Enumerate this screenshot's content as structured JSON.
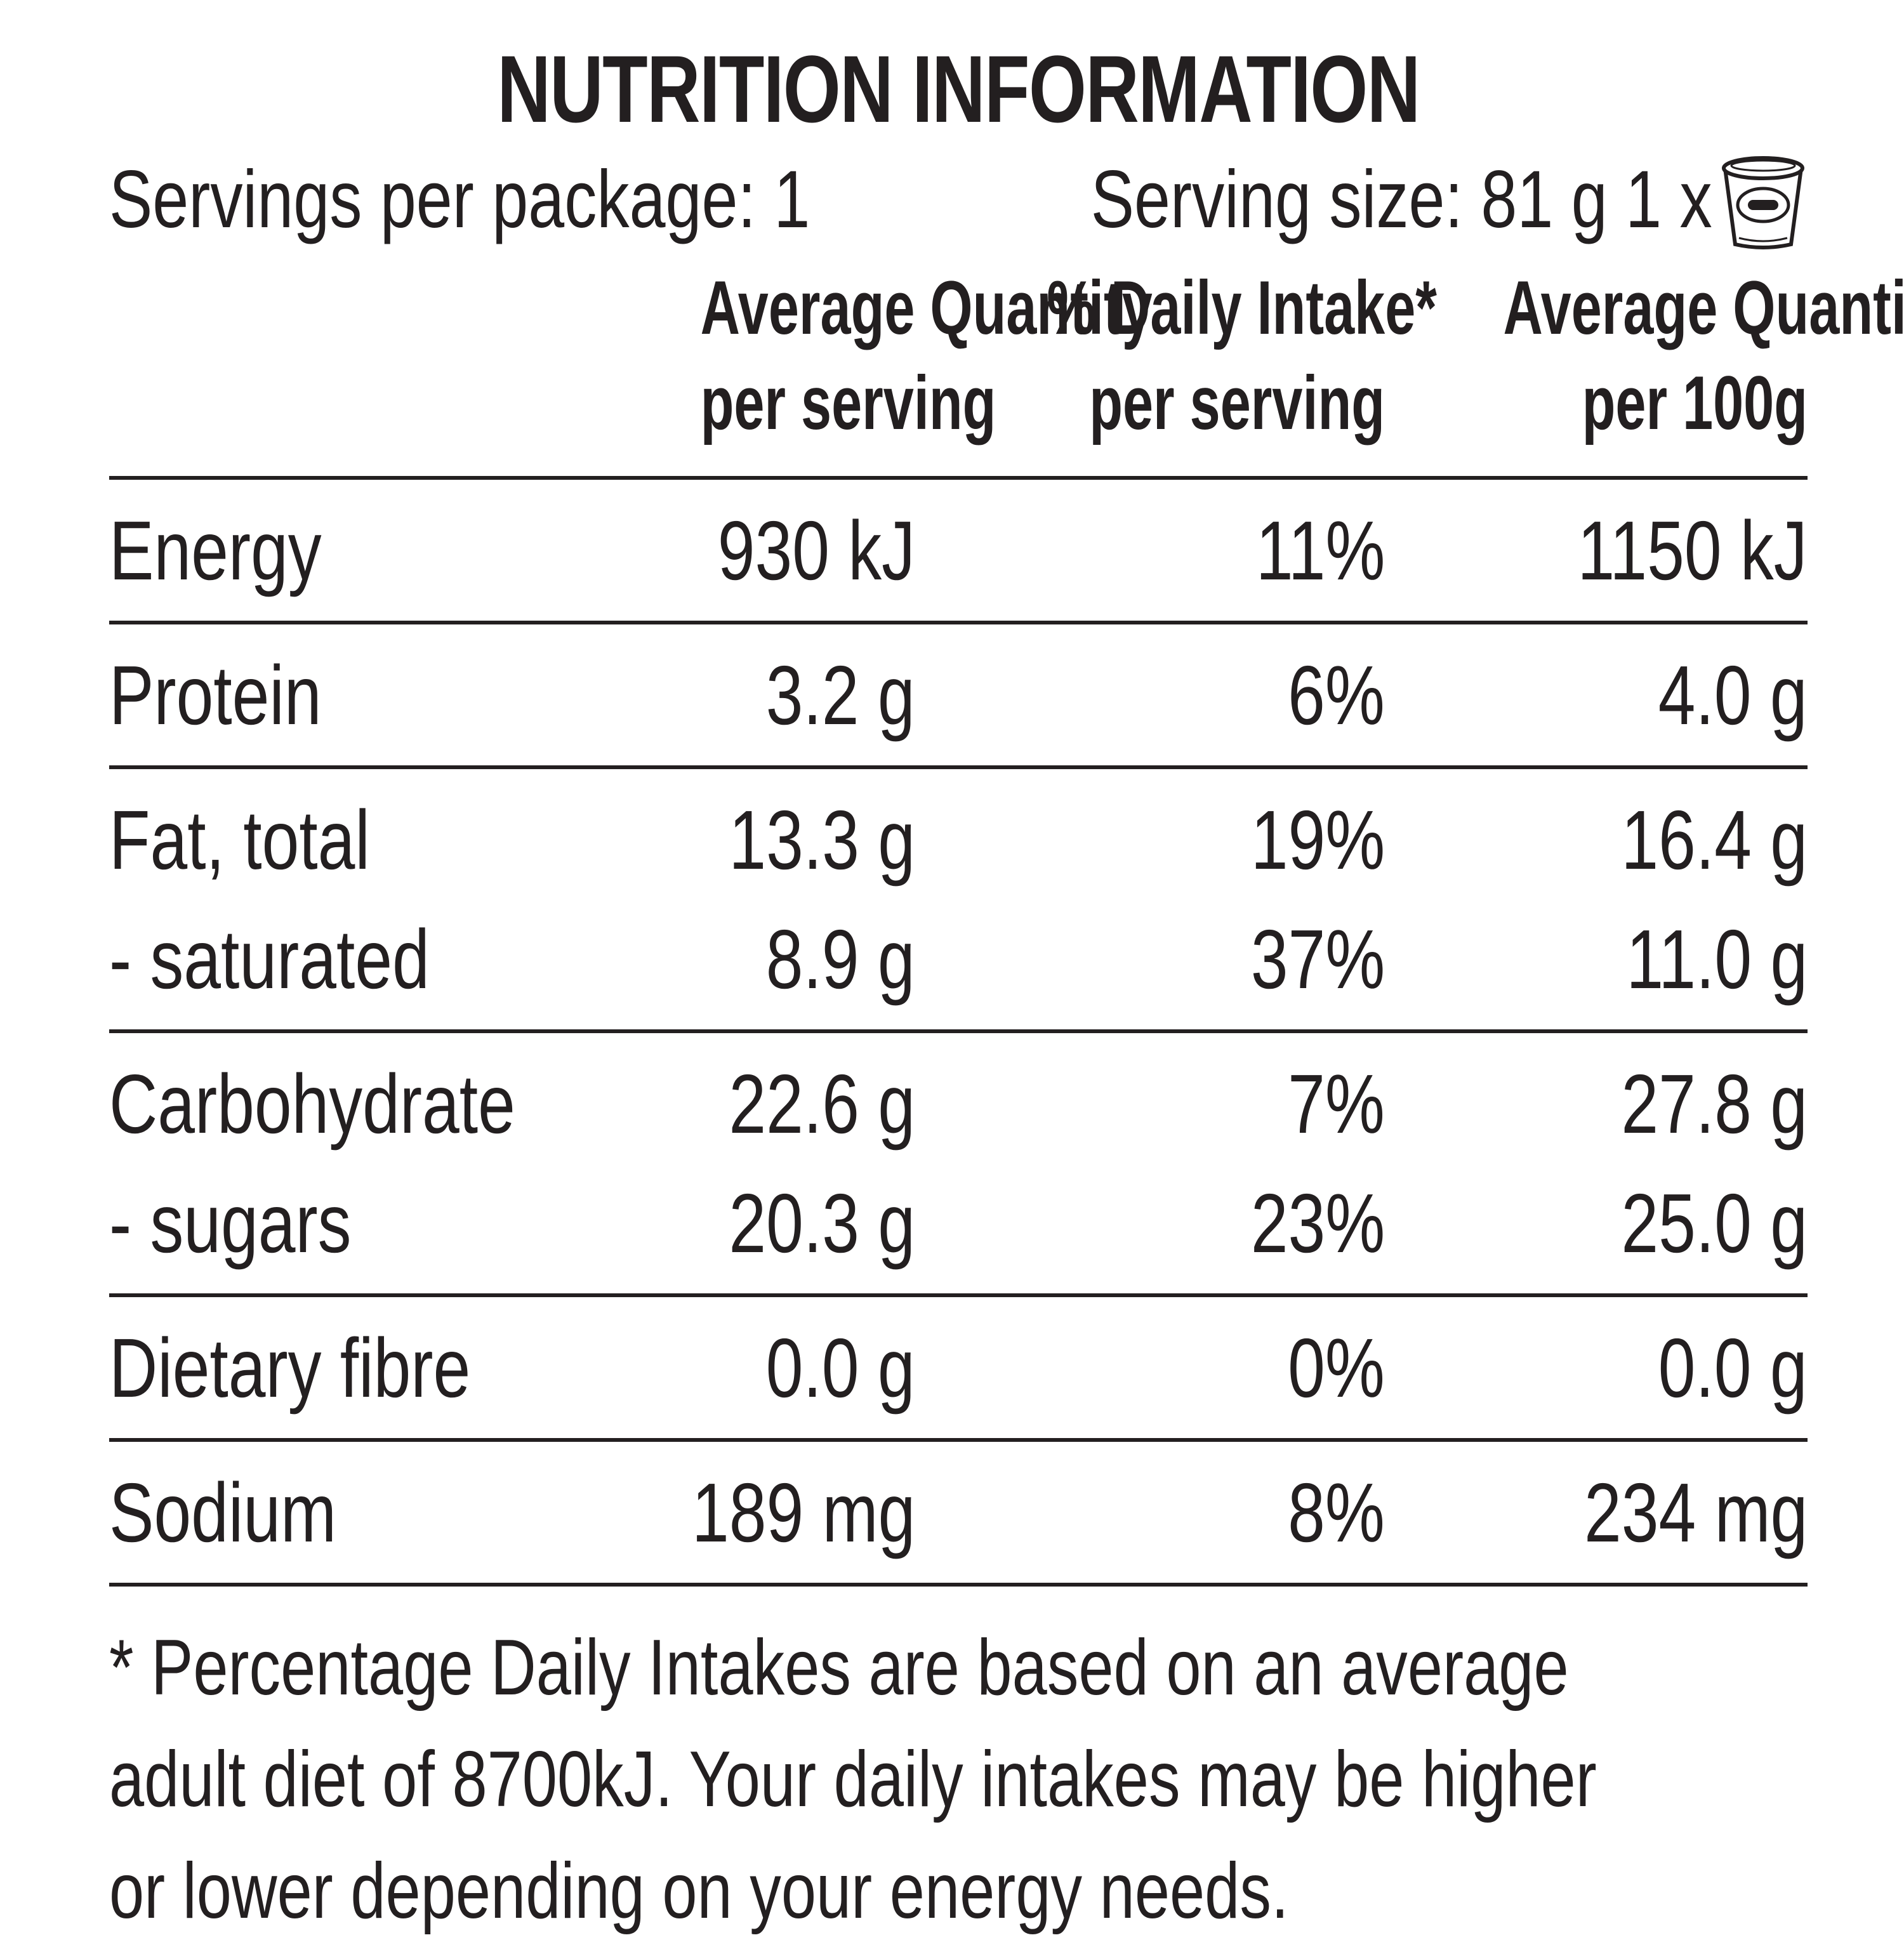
{
  "title": "NUTRITION INFORMATION",
  "servings": {
    "per_package": "Servings per package: 1",
    "serving_size": "Serving size: 81 g 1 x"
  },
  "icon": "yogurt-cup-icon",
  "headers": {
    "col_a": [
      "Average Quantity",
      "per serving"
    ],
    "col_b": [
      "% Daily Intake*",
      "per serving"
    ],
    "col_c": [
      "Average Quantity",
      "per 100g"
    ]
  },
  "groups": [
    {
      "rows": [
        {
          "label": "Energy",
          "a": "930 kJ",
          "b": "11%",
          "c": "1150 kJ"
        }
      ]
    },
    {
      "rows": [
        {
          "label": "Protein",
          "a": "3.2 g",
          "b": "6%",
          "c": "4.0 g"
        }
      ]
    },
    {
      "rows": [
        {
          "label": "Fat, total",
          "a": "13.3 g",
          "b": "19%",
          "c": "16.4 g"
        },
        {
          "label": "- saturated",
          "a": "8.9 g",
          "b": "37%",
          "c": "11.0 g"
        }
      ]
    },
    {
      "rows": [
        {
          "label": "Carbohydrate",
          "a": "22.6 g",
          "b": "7%",
          "c": "27.8 g"
        },
        {
          "label": "- sugars",
          "a": "20.3 g",
          "b": "23%",
          "c": "25.0 g"
        }
      ]
    },
    {
      "rows": [
        {
          "label": "Dietary fibre",
          "a": "0.0 g",
          "b": "0%",
          "c": "0.0 g"
        }
      ]
    },
    {
      "rows": [
        {
          "label": "Sodium",
          "a": "189 mg",
          "b": "8%",
          "c": "234 mg"
        }
      ]
    }
  ],
  "footnote": [
    "* Percentage Daily Intakes are based on an average",
    "adult diet of 8700kJ. Your daily intakes may be higher",
    "or lower depending on your energy needs."
  ],
  "colors": {
    "ink": "#231f20",
    "background": "#ffffff"
  }
}
